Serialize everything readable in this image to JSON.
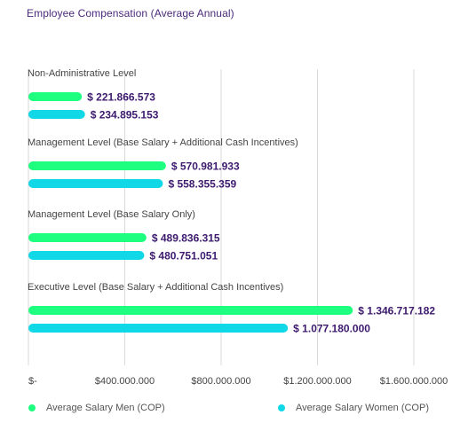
{
  "chart_data": {
    "type": "bar",
    "orientation": "horizontal",
    "title": "Employee Compensation (Average Annual)",
    "categories": [
      "Non-Administrative Level",
      "Management Level (Base Salary + Additional Cash Incentives)",
      "Management Level (Base Salary Only)",
      "Executive Level (Base Salary + Additional Cash Incentives)"
    ],
    "series": [
      {
        "name": "Average Salary Men (COP)",
        "color": "#1fff7f",
        "values": [
          221866573,
          570981933,
          489836315,
          1346717182
        ],
        "labels": [
          "$ 221.866.573",
          "$ 570.981.933",
          "$ 489.836.315",
          "$ 1.346.717.182"
        ]
      },
      {
        "name": "Average Salary Women (COP)",
        "color": "#10d8e6",
        "values": [
          234895153,
          558355359,
          480751051,
          1077180000
        ],
        "labels": [
          "$ 234.895.153",
          "$ 558.355.359",
          "$ 480.751.051",
          "$ 1.077.180.000"
        ]
      }
    ],
    "xlim": [
      0,
      1600000000
    ],
    "xticks": [
      0,
      400000000,
      800000000,
      1200000000,
      1600000000
    ],
    "xtick_labels": [
      "$-",
      "$400.000.000",
      "$800.000.000",
      "$1.200.000.000",
      "$1.600.000.000"
    ],
    "grid": "vertical",
    "legend_position": "bottom",
    "label_color": "#3d1a6e"
  }
}
